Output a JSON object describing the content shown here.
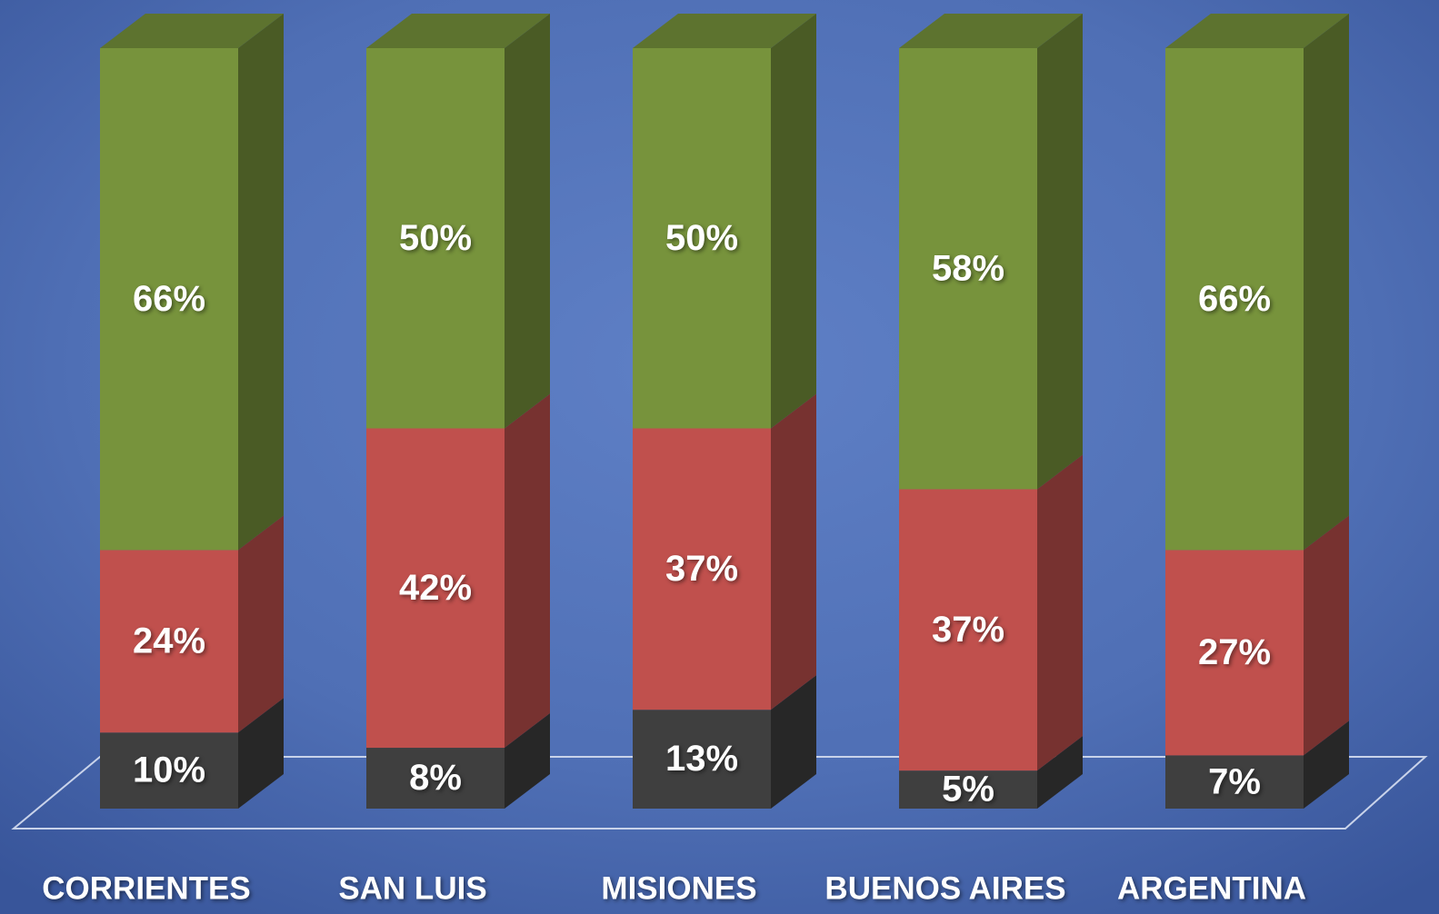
{
  "chart_data": {
    "type": "stacked-bar-3d",
    "categories": [
      "CORRIENTES",
      "SAN LUIS",
      "MISIONES",
      "BUENOS AIRES",
      "ARGENTINA"
    ],
    "series": [
      {
        "color": "#3f3f3f",
        "values": [
          10,
          8,
          13,
          5,
          7
        ],
        "value_labels": [
          "10%",
          "8%",
          "13%",
          "5%",
          "7%"
        ]
      },
      {
        "color": "#c0504d",
        "values": [
          24,
          42,
          37,
          37,
          27
        ],
        "value_labels": [
          "24%",
          "42%",
          "37%",
          "37%",
          "27%"
        ]
      },
      {
        "color": "#77933c",
        "values": [
          66,
          50,
          50,
          58,
          66
        ],
        "value_labels": [
          "66%",
          "50%",
          "50%",
          "58%",
          "66%"
        ]
      }
    ]
  }
}
